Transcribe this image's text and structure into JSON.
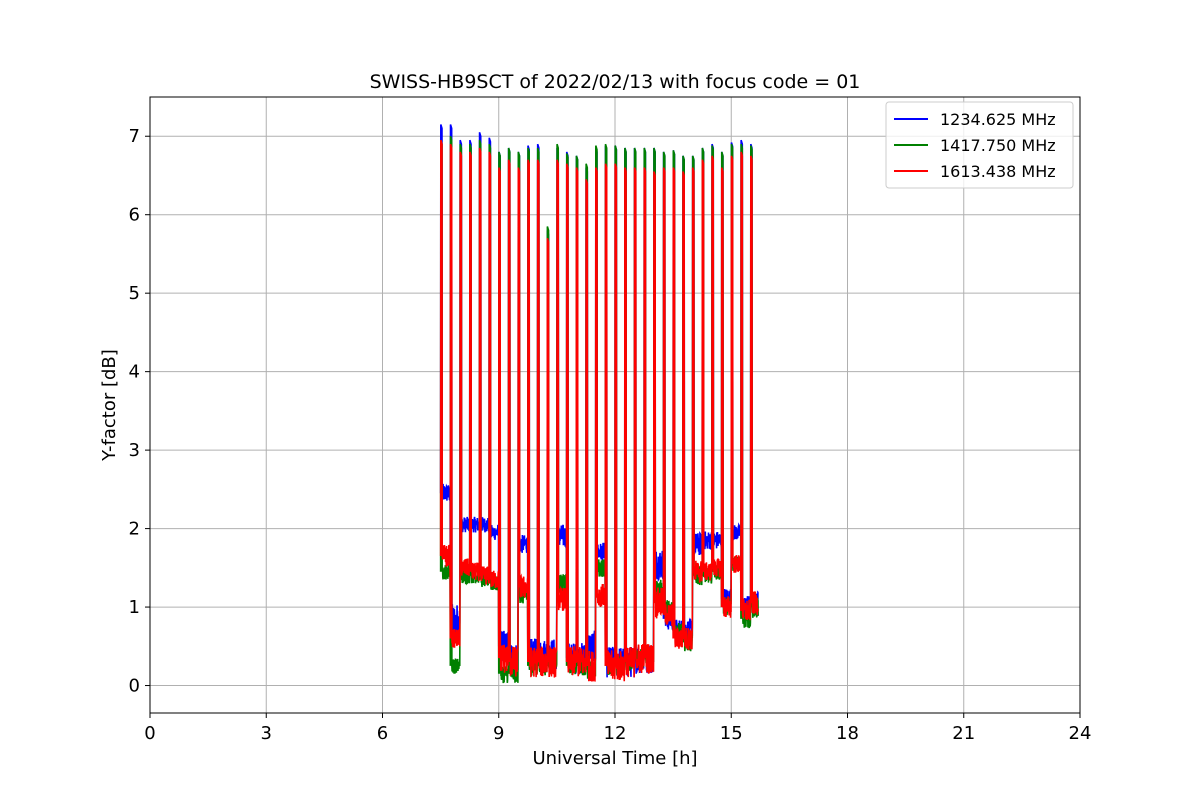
{
  "chart_data": {
    "type": "line",
    "title": "SWISS-HB9SCT of 2022/02/13 with focus code = 01",
    "xlabel": "Universal Time [h]",
    "ylabel": "Y-factor [dB]",
    "xlim": [
      0,
      24
    ],
    "ylim": [
      -0.35,
      7.5
    ],
    "xticks": [
      0,
      3,
      6,
      9,
      12,
      15,
      18,
      21,
      24
    ],
    "yticks": [
      0,
      1,
      2,
      3,
      4,
      5,
      6,
      7
    ],
    "grid": true,
    "legend_position": "top-right",
    "pulses": {
      "times": [
        7.5,
        7.75,
        8.0,
        8.25,
        8.5,
        8.75,
        9.0,
        9.25,
        9.5,
        9.75,
        10.0,
        10.25,
        10.5,
        10.75,
        11.0,
        11.25,
        11.5,
        11.75,
        12.0,
        12.25,
        12.5,
        12.75,
        13.0,
        13.25,
        13.5,
        13.75,
        14.0,
        14.25,
        14.5,
        14.75,
        15.0,
        15.25,
        15.5
      ],
      "peaks": {
        "1234.625 MHz": [
          7.15,
          7.15,
          6.95,
          6.95,
          7.05,
          6.98,
          6.8,
          6.85,
          6.8,
          6.88,
          6.9,
          5.8,
          6.85,
          6.8,
          6.75,
          6.6,
          6.85,
          6.88,
          6.88,
          6.85,
          6.85,
          6.85,
          6.85,
          6.8,
          6.82,
          6.75,
          6.75,
          6.85,
          6.9,
          6.8,
          6.92,
          6.95,
          6.9
        ],
        "1417.750 MHz": [
          6.95,
          7.0,
          6.9,
          6.9,
          6.95,
          6.9,
          6.8,
          6.85,
          6.8,
          6.85,
          6.85,
          5.85,
          6.9,
          6.78,
          6.75,
          6.65,
          6.88,
          6.9,
          6.88,
          6.85,
          6.85,
          6.85,
          6.85,
          6.8,
          6.82,
          6.75,
          6.75,
          6.85,
          6.88,
          6.8,
          6.9,
          6.9,
          6.88
        ],
        "1613.438 MHz": [
          6.95,
          6.9,
          6.8,
          6.8,
          6.85,
          6.8,
          6.6,
          6.7,
          6.6,
          6.7,
          6.7,
          5.7,
          6.7,
          6.65,
          6.6,
          6.45,
          6.6,
          6.65,
          6.65,
          6.6,
          6.6,
          6.6,
          6.55,
          6.6,
          6.6,
          6.55,
          6.6,
          6.7,
          6.75,
          6.6,
          6.75,
          6.8,
          6.75
        ]
      }
    },
    "x_end": 15.7,
    "series": [
      {
        "name": "1234.625 MHz",
        "color": "#0000ff",
        "baseline": [
          2.45,
          0.8,
          2.05,
          2.05,
          2.05,
          1.95,
          0.5,
          0.35,
          1.8,
          0.4,
          0.4,
          0.4,
          1.9,
          0.35,
          0.35,
          0.5,
          1.7,
          0.3,
          0.3,
          0.3,
          0.35,
          0.35,
          1.55,
          0.85,
          0.7,
          0.7,
          1.8,
          1.85,
          1.85,
          1.1,
          1.95,
          1.0,
          1.05
        ],
        "noise": [
          0.12,
          0.25,
          0.1,
          0.1,
          0.1,
          0.1,
          0.2,
          0.2,
          0.12,
          0.2,
          0.2,
          0.2,
          0.15,
          0.2,
          0.2,
          0.2,
          0.12,
          0.2,
          0.2,
          0.2,
          0.2,
          0.2,
          0.2,
          0.15,
          0.15,
          0.15,
          0.15,
          0.12,
          0.12,
          0.15,
          0.1,
          0.15,
          0.15
        ]
      },
      {
        "name": "1417.750 MHz",
        "color": "#008000",
        "baseline": [
          1.45,
          0.25,
          1.4,
          1.4,
          1.35,
          1.3,
          0.15,
          0.15,
          1.15,
          0.25,
          0.25,
          0.25,
          1.3,
          0.25,
          0.25,
          0.2,
          1.5,
          0.25,
          0.25,
          0.3,
          0.35,
          0.35,
          1.2,
          0.95,
          0.7,
          0.55,
          1.4,
          1.4,
          1.45,
          1.0,
          1.55,
          0.85,
          1.0
        ],
        "noise": [
          0.1,
          0.1,
          0.1,
          0.1,
          0.1,
          0.1,
          0.12,
          0.12,
          0.12,
          0.12,
          0.12,
          0.12,
          0.12,
          0.12,
          0.12,
          0.12,
          0.12,
          0.12,
          0.12,
          0.12,
          0.12,
          0.12,
          0.15,
          0.15,
          0.12,
          0.12,
          0.12,
          0.1,
          0.1,
          0.12,
          0.1,
          0.12,
          0.15
        ]
      },
      {
        "name": "1613.438 MHz",
        "color": "#ff0000",
        "baseline": [
          1.65,
          0.6,
          1.5,
          1.45,
          1.4,
          1.35,
          0.35,
          0.3,
          1.25,
          0.3,
          0.3,
          0.3,
          1.1,
          0.3,
          0.3,
          0.25,
          1.15,
          0.25,
          0.25,
          0.3,
          0.35,
          0.35,
          1.05,
          0.9,
          0.6,
          0.6,
          1.45,
          1.45,
          1.5,
          1.0,
          1.55,
          0.95,
          1.05
        ],
        "noise": [
          0.15,
          0.12,
          0.12,
          0.12,
          0.12,
          0.12,
          0.2,
          0.2,
          0.15,
          0.2,
          0.2,
          0.2,
          0.15,
          0.2,
          0.2,
          0.2,
          0.15,
          0.2,
          0.2,
          0.2,
          0.2,
          0.2,
          0.2,
          0.15,
          0.15,
          0.15,
          0.15,
          0.12,
          0.12,
          0.15,
          0.12,
          0.15,
          0.15
        ]
      }
    ]
  }
}
